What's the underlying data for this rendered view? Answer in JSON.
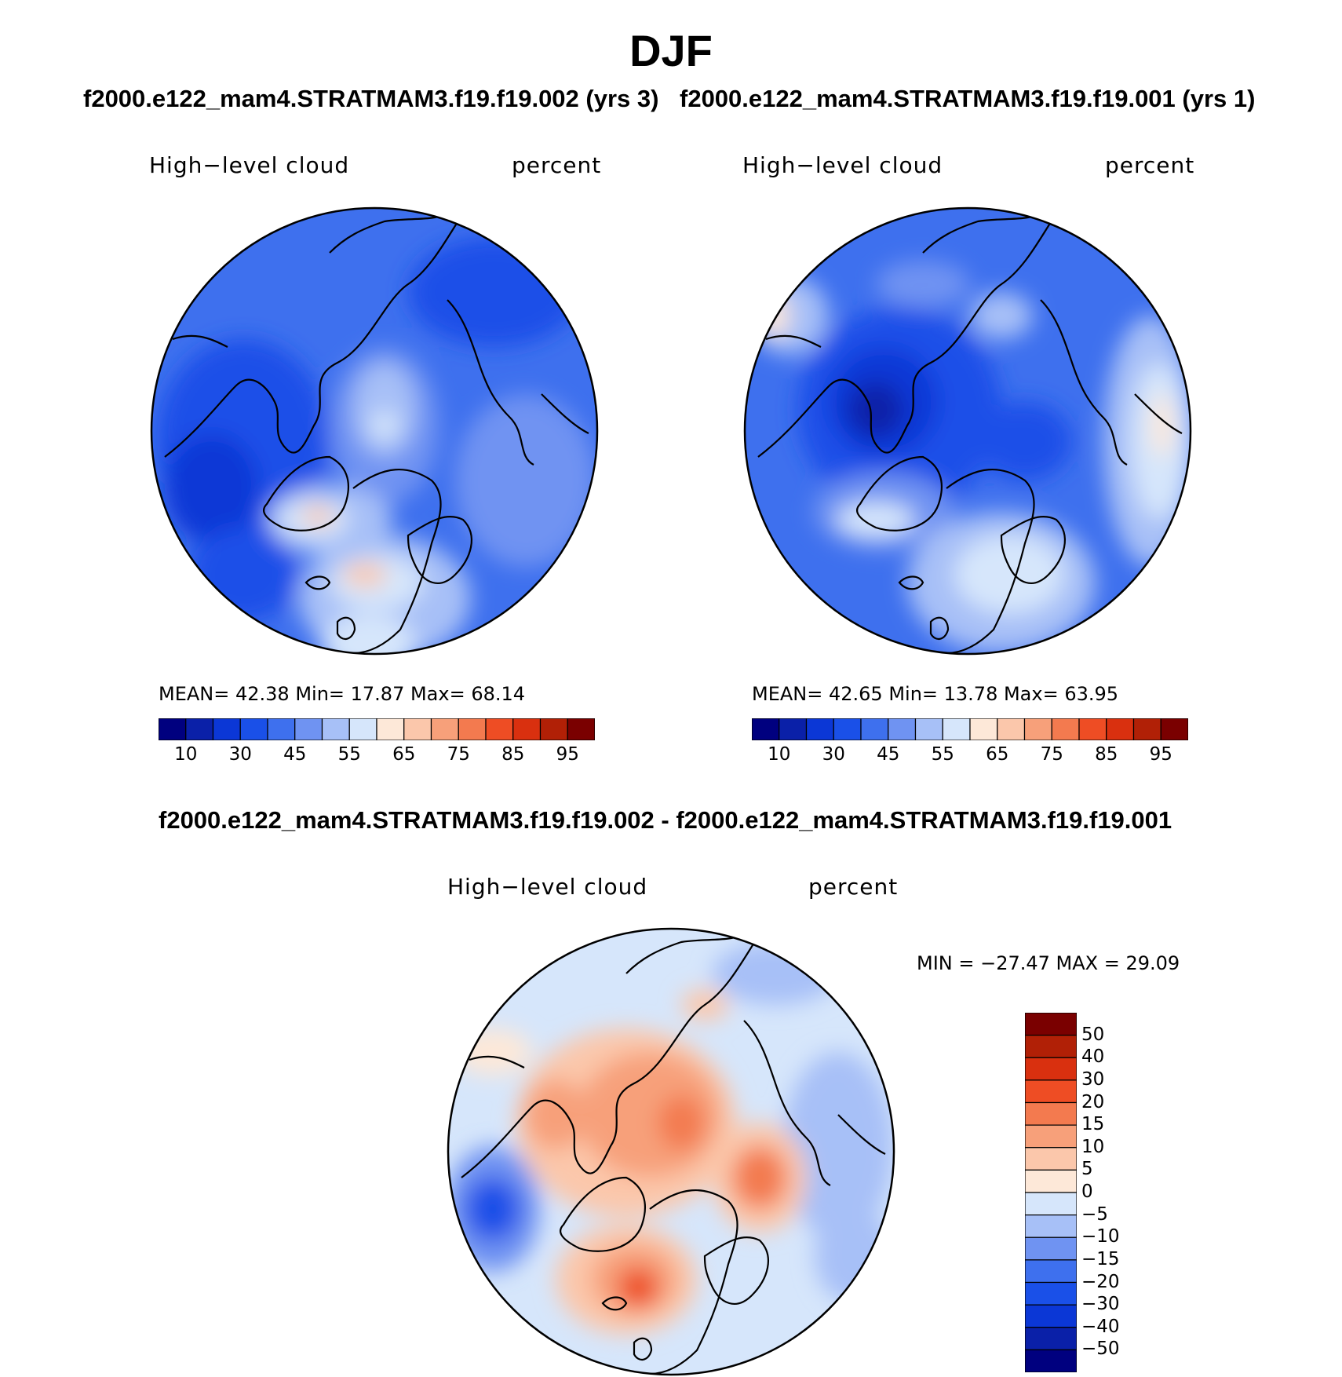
{
  "figure": {
    "season": "DJF",
    "top_subtitle_left": "f2000.e122_mam4.STRATMAM3.f19.f19.002 (yrs 3)",
    "top_subtitle_right": "f2000.e122_mam4.STRATMAM3.f19.f19.001 (yrs 1)",
    "diff_subtitle": "f2000.e122_mam4.STRATMAM3.f19.f19.002 - f2000.e122_mam4.STRATMAM3.f19.f19.001"
  },
  "panels": [
    {
      "variable": "High−level cloud",
      "units": "percent",
      "stats": "MEAN=   42.38   Min=   17.87   Max=   68.14"
    },
    {
      "variable": "High−level cloud",
      "units": "percent",
      "stats": "MEAN=   42.65   Min=   13.78   Max=   63.95"
    },
    {
      "variable": "High−level cloud",
      "units": "percent",
      "stats": "MIN = −27.47  MAX =   29.09"
    }
  ],
  "chart_data": [
    {
      "type": "heatmap",
      "title": "High−level cloud",
      "units": "percent",
      "projection": "north polar stereographic",
      "mean": 42.38,
      "min": 17.87,
      "max": 68.14,
      "colorbar_levels": [
        "10",
        "30",
        "45",
        "55",
        "65",
        "75",
        "85",
        "95"
      ],
      "colors": [
        "#00007f",
        "#0a20a8",
        "#0b37d6",
        "#1a50e8",
        "#3e70ee",
        "#6f93f2",
        "#a7c0f7",
        "#d6e6fb",
        "#fde8d8",
        "#fbc7ab",
        "#f7a07a",
        "#f37a4f",
        "#ee4d24",
        "#d9300f",
        "#b12006",
        "#7a0000"
      ]
    },
    {
      "type": "heatmap",
      "title": "High−level cloud",
      "units": "percent",
      "projection": "north polar stereographic",
      "mean": 42.65,
      "min": 13.78,
      "max": 63.95,
      "colorbar_levels": [
        "10",
        "30",
        "45",
        "55",
        "65",
        "75",
        "85",
        "95"
      ],
      "colors": [
        "#00007f",
        "#0a20a8",
        "#0b37d6",
        "#1a50e8",
        "#3e70ee",
        "#6f93f2",
        "#a7c0f7",
        "#d6e6fb",
        "#fde8d8",
        "#fbc7ab",
        "#f7a07a",
        "#f37a4f",
        "#ee4d24",
        "#d9300f",
        "#b12006",
        "#7a0000"
      ]
    },
    {
      "type": "heatmap",
      "title": "High−level cloud",
      "units": "percent",
      "projection": "north polar stereographic",
      "min": -27.47,
      "max": 29.09,
      "colorbar_levels": [
        "50",
        "40",
        "30",
        "20",
        "15",
        "10",
        "5",
        "0",
        "−5",
        "−10",
        "−15",
        "−20",
        "−30",
        "−40",
        "−50"
      ],
      "colors": [
        "#7a0000",
        "#b12006",
        "#d9300f",
        "#ee4d24",
        "#f37a4f",
        "#f7a07a",
        "#fbc7ab",
        "#fde8d8",
        "#d6e6fb",
        "#a7c0f7",
        "#6f93f2",
        "#3e70ee",
        "#1a50e8",
        "#0b37d6",
        "#0a20a8",
        "#00007f"
      ]
    }
  ]
}
